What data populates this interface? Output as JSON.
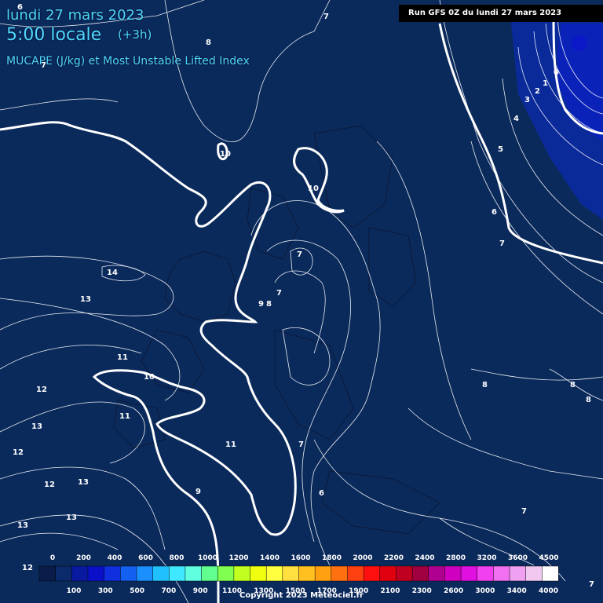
{
  "header": {
    "date": "lundi 27 mars 2023",
    "time": "5:00 locale",
    "offset": "(+3h)",
    "parameter": "MUCAPE (J/kg) et Most Unstable Lifted Index",
    "run": "Run GFS 0Z du lundi 27 mars 2023"
  },
  "contour_labels": [
    "6",
    "7",
    "8",
    "10",
    "7",
    "9",
    "8",
    "7",
    "10",
    "14",
    "13",
    "11",
    "10",
    "12",
    "11",
    "13",
    "12",
    "11",
    "9",
    "12",
    "13",
    "13",
    "13",
    "12",
    "7",
    "6",
    "8",
    "7",
    "8",
    "8",
    "7",
    "5",
    "4",
    "6",
    "7",
    "3",
    "2",
    "1",
    "0",
    "7"
  ],
  "scale": {
    "top_labels": [
      "0",
      "200",
      "400",
      "600",
      "800",
      "1000",
      "1200",
      "1400",
      "1600",
      "1800",
      "2000",
      "2200",
      "2400",
      "2800",
      "3200",
      "3600",
      "4500"
    ],
    "bottom_labels": [
      "100",
      "300",
      "500",
      "700",
      "900",
      "1100",
      "1300",
      "1500",
      "1700",
      "1900",
      "2100",
      "2300",
      "2600",
      "3000",
      "3400",
      "4000"
    ],
    "colors": [
      "#0a1d4a",
      "#0a2a6c",
      "#0a1aa0",
      "#0a10c8",
      "#1030e0",
      "#1460f0",
      "#1a90ff",
      "#20c0ff",
      "#40e8ff",
      "#60ffe0",
      "#60ff90",
      "#80ff50",
      "#c0ff20",
      "#f0ff10",
      "#ffff40",
      "#ffe040",
      "#ffc020",
      "#ffa010",
      "#ff7010",
      "#ff4010",
      "#ff1010",
      "#e00010",
      "#c00020",
      "#a00040",
      "#b00090",
      "#d000c0",
      "#e010e0",
      "#f040f0",
      "#f070f0",
      "#f0a0f0",
      "#f0c8f0",
      "#ffffff"
    ]
  },
  "colors": {
    "background": "#0b2a5c",
    "header_text": "#4fd8ff",
    "contour": "#ffffff",
    "cape_area": "#0a2aa0"
  },
  "copyright": "Copyright 2023 Meteociel.fr"
}
